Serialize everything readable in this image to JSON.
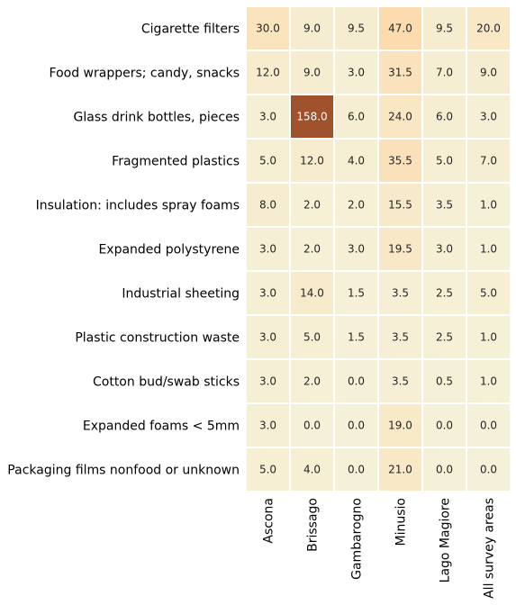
{
  "chart_data": {
    "type": "heatmap",
    "title": "",
    "xlabel": "",
    "ylabel": "",
    "rows": [
      "Cigarette filters",
      "Food wrappers; candy, snacks",
      "Glass drink bottles, pieces",
      "Fragmented plastics",
      "Insulation: includes spray foams",
      "Expanded polystyrene",
      "Industrial sheeting",
      "Plastic construction waste",
      "Cotton bud/swab sticks",
      "Expanded foams < 5mm",
      "Packaging films nonfood or unknown"
    ],
    "columns": [
      "Ascona",
      "Brissago",
      "Gambarogno",
      "Minusio",
      "Lago Magiore",
      "All survey areas"
    ],
    "values": [
      [
        30.0,
        9.0,
        9.5,
        47.0,
        9.5,
        20.0
      ],
      [
        12.0,
        9.0,
        3.0,
        31.5,
        7.0,
        9.0
      ],
      [
        3.0,
        158.0,
        6.0,
        24.0,
        6.0,
        3.0
      ],
      [
        5.0,
        12.0,
        4.0,
        35.5,
        5.0,
        7.0
      ],
      [
        8.0,
        2.0,
        2.0,
        15.5,
        3.5,
        1.0
      ],
      [
        3.0,
        2.0,
        3.0,
        19.5,
        3.0,
        1.0
      ],
      [
        3.0,
        14.0,
        1.5,
        3.5,
        2.5,
        5.0
      ],
      [
        3.0,
        5.0,
        1.5,
        3.5,
        2.5,
        1.0
      ],
      [
        3.0,
        2.0,
        0.0,
        3.5,
        0.5,
        1.0
      ],
      [
        3.0,
        0.0,
        0.0,
        19.0,
        0.0,
        0.0
      ],
      [
        5.0,
        4.0,
        0.0,
        21.0,
        0.0,
        0.0
      ]
    ],
    "value_format": "1 decimal",
    "color_scale": {
      "low": "#f5f1d8",
      "mid": "#fcdcae",
      "high": "#a0522d"
    },
    "grid_line_color": "#ffffff",
    "legend": "none"
  }
}
